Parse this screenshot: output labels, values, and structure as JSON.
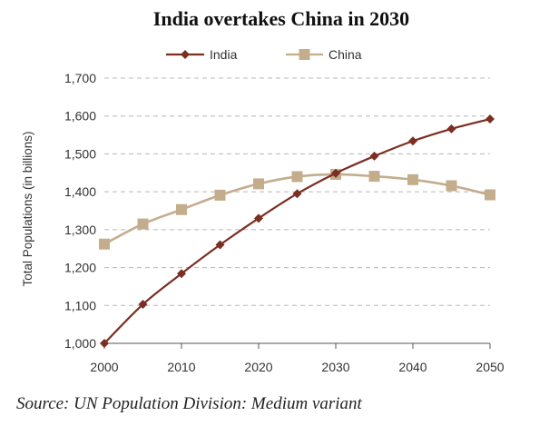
{
  "chart_data": {
    "type": "line",
    "title": "India overtakes China in 2030",
    "xlabel": "",
    "ylabel": "Total Populations (in billions)",
    "x": [
      2000,
      2005,
      2010,
      2015,
      2020,
      2025,
      2030,
      2035,
      2040,
      2045,
      2050
    ],
    "xticks": [
      "2000",
      "2010",
      "2020",
      "2030",
      "2040",
      "2050"
    ],
    "yticks": [
      "1,000",
      "1,100",
      "1,200",
      "1,300",
      "1,400",
      "1,500",
      "1,600",
      "1,700"
    ],
    "ylim": [
      1000,
      1700
    ],
    "grid": true,
    "legend_position": "top-center",
    "series": [
      {
        "name": "India",
        "color": "#7b2e22",
        "marker": "diamond",
        "values": [
          1000,
          1103,
          1184,
          1260,
          1330,
          1395,
          1449,
          1494,
          1534,
          1566,
          1592
        ]
      },
      {
        "name": "China",
        "color": "#c4ad8c",
        "marker": "square",
        "values": [
          1262,
          1315,
          1353,
          1391,
          1421,
          1440,
          1446,
          1441,
          1432,
          1416,
          1392
        ]
      }
    ],
    "source": "Source: UN Population Division: Medium variant"
  }
}
